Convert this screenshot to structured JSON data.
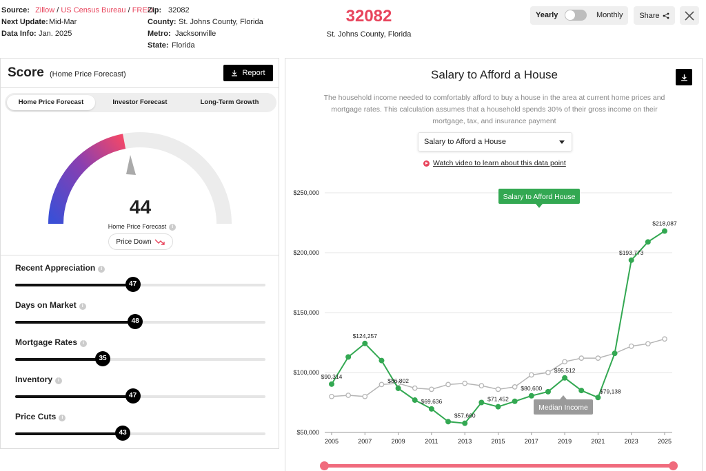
{
  "meta": {
    "source_label": "Source:",
    "source_1": "Zillow",
    "source_2": "US Census Bureau",
    "source_3": "FRED",
    "next_update_label": "Next Update:",
    "next_update": "Mid-Mar",
    "data_info_label": "Data Info:",
    "data_info": "Jan. 2025",
    "zip_label": "Zip:",
    "zip": "32082",
    "county_label": "County:",
    "county": "St. Johns County, Florida",
    "metro_label": "Metro:",
    "metro": "Jacksonville",
    "state_label": "State:",
    "state": "Florida"
  },
  "header": {
    "title": "32082",
    "subtitle": "St. Johns County, Florida",
    "toggle_left": "Yearly",
    "toggle_right": "Monthly",
    "share": "Share"
  },
  "score": {
    "title": "Score",
    "subtitle": "(Home Price Forecast)",
    "report": "Report",
    "tabs": [
      "Home Price Forecast",
      "Investor Forecast",
      "Long-Term Growth"
    ],
    "value": "44",
    "value_label": "Home Price Forecast",
    "status": "Price Down",
    "gauge_fraction": 0.44,
    "metrics": [
      {
        "name": "Recent Appreciation",
        "value": "47"
      },
      {
        "name": "Days on Market",
        "value": "48"
      },
      {
        "name": "Mortgage Rates",
        "value": "35"
      },
      {
        "name": "Inventory",
        "value": "47"
      },
      {
        "name": "Price Cuts",
        "value": "43"
      }
    ]
  },
  "chart_panel": {
    "title": "Salary to Afford a House",
    "description": "The household income needed to comfortably afford to buy a house in the area at current home prices and mortgage rates. This calculation assumes that a household spends 30% of their gross income on their mortgage, tax, and insurance payment",
    "select_value": "Salary to Afford a House",
    "video_link": "Watch video to learn about this data point"
  },
  "colors": {
    "accent": "#e8445c",
    "salary_series": "#33a852",
    "income_series": "#b5b5b5"
  },
  "chart_data": {
    "type": "line",
    "x": [
      2005,
      2006,
      2007,
      2008,
      2009,
      2010,
      2011,
      2012,
      2013,
      2014,
      2015,
      2016,
      2017,
      2018,
      2019,
      2020,
      2021,
      2022,
      2023,
      2024,
      2025
    ],
    "x_ticks": [
      "2005",
      "2007",
      "2009",
      "2011",
      "2013",
      "2015",
      "2017",
      "2019",
      "2021",
      "2023",
      "2025"
    ],
    "y_ticks": [
      "$50,000",
      "$100,000",
      "$150,000",
      "$200,000",
      "$250,000"
    ],
    "ylim": [
      50000,
      250000
    ],
    "series": [
      {
        "name": "Salary to Afford House",
        "values": [
          90314,
          113000,
          124257,
          110000,
          86802,
          77000,
          69636,
          59000,
          57660,
          75000,
          71452,
          76000,
          80600,
          84000,
          95512,
          85000,
          79138,
          116000,
          193773,
          209000,
          218087
        ]
      },
      {
        "name": "Median Income",
        "values": [
          80000,
          81000,
          80000,
          90000,
          91000,
          87000,
          86000,
          90000,
          91000,
          89000,
          86000,
          88000,
          98000,
          100000,
          109000,
          112000,
          112000,
          116000,
          122000,
          124000,
          128000
        ]
      }
    ],
    "data_labels": [
      {
        "x": 2005,
        "text": "$90,314"
      },
      {
        "x": 2007,
        "text": "$124,257"
      },
      {
        "x": 2009,
        "text": "$86,802"
      },
      {
        "x": 2011,
        "text": "$69,636"
      },
      {
        "x": 2013,
        "text": "$57,660"
      },
      {
        "x": 2015,
        "text": "$71,452"
      },
      {
        "x": 2017,
        "text": "$80,600"
      },
      {
        "x": 2019,
        "text": "$95,512"
      },
      {
        "x": 2021,
        "text": "$79,138"
      },
      {
        "x": 2023,
        "text": "$193,773"
      },
      {
        "x": 2025,
        "text": "$218,087"
      }
    ],
    "legend": [
      "Salary to Afford House",
      "Median Income"
    ]
  }
}
